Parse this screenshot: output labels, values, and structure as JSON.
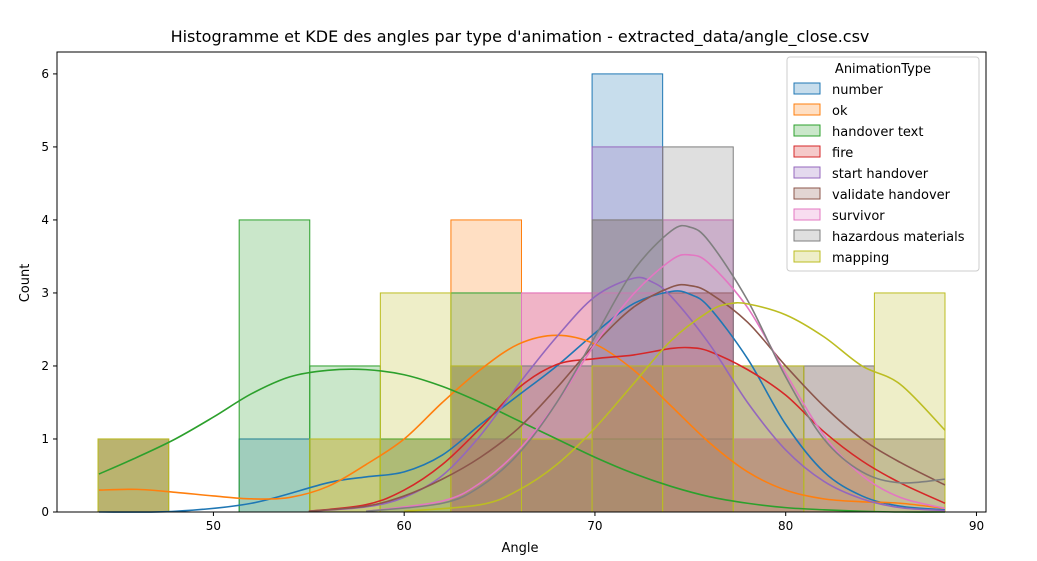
{
  "chart_data": {
    "type": "histogram",
    "title": "Histogramme et KDE des angles par type d'animation - extracted_data/angle_close.csv",
    "xlabel": "Angle",
    "ylabel": "Count",
    "xlim": [
      41.8,
      90.5
    ],
    "ylim": [
      0,
      6.3
    ],
    "xticks": [
      "50",
      "60",
      "70",
      "80",
      "90"
    ],
    "xtick_values": [
      50,
      60,
      70,
      80,
      90
    ],
    "yticks": [
      "0",
      "1",
      "2",
      "3",
      "4",
      "5",
      "6"
    ],
    "ytick_values": [
      0,
      1,
      2,
      3,
      4,
      5,
      6
    ],
    "bin_edges": [
      43.95,
      47.65,
      51.35,
      55.05,
      58.75,
      62.45,
      66.15,
      69.85,
      73.55,
      77.25,
      80.95,
      84.65,
      88.35
    ],
    "legend_title": "AnimationType",
    "legend_position": "upper right",
    "grid": false,
    "series": [
      {
        "name": "number",
        "color": "#1f77b4",
        "counts": [
          0,
          0,
          1,
          0,
          1,
          2,
          1,
          6,
          1,
          0,
          0,
          0
        ],
        "kde": [
          [
            44,
            0
          ],
          [
            48,
            0.01
          ],
          [
            52,
            0.12
          ],
          [
            56,
            0.4
          ],
          [
            58,
            0.48
          ],
          [
            60,
            0.55
          ],
          [
            62,
            0.78
          ],
          [
            64,
            1.2
          ],
          [
            66,
            1.6
          ],
          [
            68,
            2.0
          ],
          [
            70,
            2.45
          ],
          [
            72,
            2.85
          ],
          [
            74,
            3.02
          ],
          [
            75,
            2.98
          ],
          [
            76,
            2.8
          ],
          [
            78,
            2.1
          ],
          [
            80,
            1.2
          ],
          [
            82,
            0.55
          ],
          [
            84,
            0.22
          ],
          [
            86,
            0.08
          ],
          [
            88.35,
            0.03
          ]
        ]
      },
      {
        "name": "ok",
        "color": "#ff7f0e",
        "counts": [
          1,
          0,
          0,
          1,
          1,
          4,
          1,
          2,
          2,
          0,
          0,
          0
        ],
        "kde": [
          [
            44,
            0.3
          ],
          [
            46,
            0.31
          ],
          [
            48,
            0.27
          ],
          [
            50,
            0.22
          ],
          [
            52,
            0.18
          ],
          [
            54,
            0.2
          ],
          [
            56,
            0.35
          ],
          [
            58,
            0.65
          ],
          [
            60,
            1.0
          ],
          [
            62,
            1.5
          ],
          [
            64,
            1.95
          ],
          [
            66,
            2.3
          ],
          [
            68,
            2.42
          ],
          [
            70,
            2.3
          ],
          [
            72,
            1.95
          ],
          [
            74,
            1.45
          ],
          [
            76,
            0.95
          ],
          [
            78,
            0.55
          ],
          [
            80,
            0.3
          ],
          [
            82,
            0.18
          ],
          [
            84,
            0.14
          ],
          [
            86,
            0.12
          ],
          [
            88.35,
            0.05
          ]
        ]
      },
      {
        "name": "handover text",
        "color": "#2ca02c",
        "counts": [
          1,
          0,
          4,
          2,
          1,
          3,
          1,
          1,
          0,
          0,
          0,
          0
        ],
        "kde": [
          [
            44,
            0.52
          ],
          [
            46,
            0.75
          ],
          [
            48,
            1.0
          ],
          [
            50,
            1.3
          ],
          [
            52,
            1.62
          ],
          [
            54,
            1.85
          ],
          [
            56,
            1.94
          ],
          [
            58,
            1.95
          ],
          [
            60,
            1.88
          ],
          [
            62,
            1.72
          ],
          [
            64,
            1.5
          ],
          [
            66,
            1.25
          ],
          [
            68,
            1.0
          ],
          [
            70,
            0.75
          ],
          [
            72,
            0.53
          ],
          [
            74,
            0.35
          ],
          [
            76,
            0.21
          ],
          [
            78,
            0.12
          ],
          [
            80,
            0.06
          ],
          [
            82,
            0.03
          ],
          [
            84,
            0.01
          ],
          [
            86,
            0.0
          ],
          [
            88.35,
            0.0
          ]
        ]
      },
      {
        "name": "fire",
        "color": "#d62728",
        "counts": [
          0,
          0,
          0,
          0,
          0,
          1,
          3,
          2,
          3,
          1,
          1,
          0
        ],
        "kde": [
          [
            55,
            0.01
          ],
          [
            58,
            0.1
          ],
          [
            60,
            0.3
          ],
          [
            62,
            0.65
          ],
          [
            64,
            1.15
          ],
          [
            66,
            1.7
          ],
          [
            68,
            2.02
          ],
          [
            70,
            2.1
          ],
          [
            72,
            2.15
          ],
          [
            74,
            2.24
          ],
          [
            75,
            2.25
          ],
          [
            76,
            2.2
          ],
          [
            78,
            1.95
          ],
          [
            80,
            1.6
          ],
          [
            82,
            1.1
          ],
          [
            84,
            0.7
          ],
          [
            86,
            0.4
          ],
          [
            88.35,
            0.12
          ]
        ]
      },
      {
        "name": "start handover",
        "color": "#9467bd",
        "counts": [
          0,
          0,
          0,
          0,
          0,
          1,
          1,
          5,
          4,
          1,
          0,
          0
        ],
        "kde": [
          [
            55,
            0.01
          ],
          [
            58,
            0.07
          ],
          [
            60,
            0.2
          ],
          [
            62,
            0.5
          ],
          [
            64,
            1.05
          ],
          [
            66,
            1.75
          ],
          [
            68,
            2.4
          ],
          [
            70,
            2.95
          ],
          [
            72,
            3.2
          ],
          [
            73,
            3.15
          ],
          [
            74,
            2.95
          ],
          [
            76,
            2.3
          ],
          [
            78,
            1.5
          ],
          [
            80,
            0.85
          ],
          [
            82,
            0.42
          ],
          [
            84,
            0.18
          ],
          [
            86,
            0.06
          ],
          [
            88.35,
            0.02
          ]
        ]
      },
      {
        "name": "validate handover",
        "color": "#8c564b",
        "counts": [
          1,
          0,
          0,
          0,
          0,
          2,
          2,
          4,
          3,
          2,
          2,
          1
        ],
        "kde": [
          [
            55,
            0.01
          ],
          [
            58,
            0.08
          ],
          [
            60,
            0.22
          ],
          [
            62,
            0.45
          ],
          [
            64,
            0.75
          ],
          [
            66,
            1.15
          ],
          [
            68,
            1.7
          ],
          [
            70,
            2.3
          ],
          [
            72,
            2.8
          ],
          [
            74,
            3.08
          ],
          [
            75,
            3.1
          ],
          [
            76,
            3.0
          ],
          [
            78,
            2.6
          ],
          [
            80,
            2.0
          ],
          [
            82,
            1.45
          ],
          [
            84,
            1.0
          ],
          [
            86,
            0.68
          ],
          [
            88.35,
            0.37
          ]
        ]
      },
      {
        "name": "survivor",
        "color": "#e377c2",
        "counts": [
          0,
          0,
          0,
          0,
          0,
          1,
          3,
          3,
          4,
          1,
          1,
          0
        ],
        "kde": [
          [
            58,
            0.01
          ],
          [
            62,
            0.15
          ],
          [
            64,
            0.4
          ],
          [
            66,
            0.85
          ],
          [
            68,
            1.5
          ],
          [
            70,
            2.3
          ],
          [
            72,
            2.98
          ],
          [
            74,
            3.45
          ],
          [
            75,
            3.52
          ],
          [
            76,
            3.4
          ],
          [
            78,
            2.8
          ],
          [
            80,
            1.9
          ],
          [
            82,
            1.05
          ],
          [
            84,
            0.5
          ],
          [
            86,
            0.2
          ],
          [
            88.35,
            0.05
          ]
        ]
      },
      {
        "name": "hazardous materials",
        "color": "#7f7f7f",
        "counts": [
          0,
          0,
          0,
          0,
          0,
          1,
          2,
          4,
          5,
          2,
          2,
          1
        ],
        "kde": [
          [
            58,
            0.01
          ],
          [
            62,
            0.12
          ],
          [
            64,
            0.35
          ],
          [
            66,
            0.8
          ],
          [
            68,
            1.5
          ],
          [
            70,
            2.4
          ],
          [
            72,
            3.3
          ],
          [
            74,
            3.85
          ],
          [
            75,
            3.9
          ],
          [
            76,
            3.7
          ],
          [
            78,
            2.9
          ],
          [
            80,
            1.85
          ],
          [
            82,
            1.0
          ],
          [
            84,
            0.55
          ],
          [
            86,
            0.4
          ],
          [
            88.35,
            0.45
          ]
        ]
      },
      {
        "name": "mapping",
        "color": "#bcbd22",
        "counts": [
          1,
          0,
          0,
          1,
          3,
          2,
          1,
          2,
          2,
          2,
          1,
          3
        ],
        "kde": [
          [
            60,
            0.01
          ],
          [
            64,
            0.1
          ],
          [
            66,
            0.3
          ],
          [
            68,
            0.65
          ],
          [
            70,
            1.15
          ],
          [
            72,
            1.75
          ],
          [
            74,
            2.35
          ],
          [
            76,
            2.75
          ],
          [
            77,
            2.85
          ],
          [
            78,
            2.85
          ],
          [
            80,
            2.7
          ],
          [
            82,
            2.4
          ],
          [
            84,
            2.0
          ],
          [
            86,
            1.75
          ],
          [
            88.35,
            1.12
          ]
        ]
      }
    ]
  }
}
